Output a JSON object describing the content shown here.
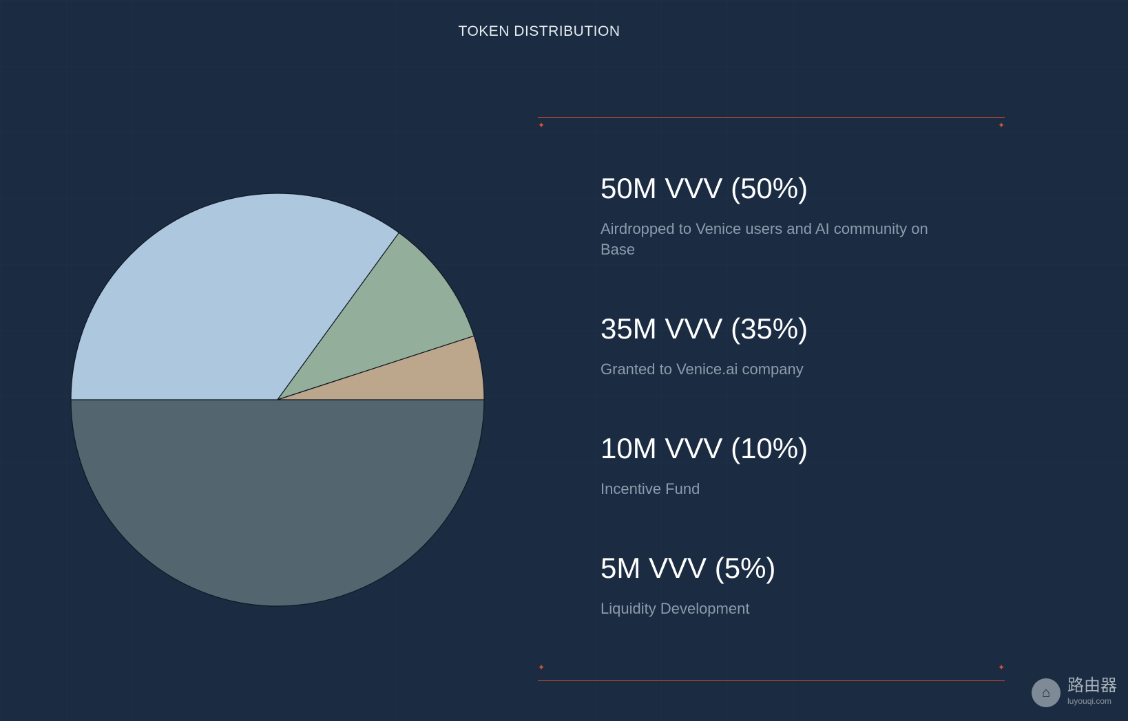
{
  "title": "TOKEN DISTRIBUTION",
  "chart_data": {
    "type": "pie",
    "title": "TOKEN DISTRIBUTION",
    "slices": [
      {
        "label": "50M VVV (50%)",
        "value": 50,
        "color": "#536670"
      },
      {
        "label": "35M VVV (35%)",
        "value": 35,
        "color": "#adc7df"
      },
      {
        "label": "10M VVV (10%)",
        "value": 10,
        "color": "#94ae9c"
      },
      {
        "label": "5M VVV (5%)",
        "value": 5,
        "color": "#bca68c"
      }
    ]
  },
  "legend": [
    {
      "amount": "50M VVV (50%)",
      "desc": "Airdropped to Venice users and AI community on Base"
    },
    {
      "amount": "35M VVV (35%)",
      "desc": "Granted to Venice.ai company"
    },
    {
      "amount": "10M VVV (10%)",
      "desc": "Incentive Fund"
    },
    {
      "amount": "5M VVV (5%)",
      "desc": "Liquidity Development"
    }
  ],
  "colors": {
    "background": "#1a2b42",
    "accent": "#c2492e"
  },
  "watermark": {
    "title": "路由器",
    "subtitle": "luyouqi.com",
    "icon": "router-icon"
  }
}
